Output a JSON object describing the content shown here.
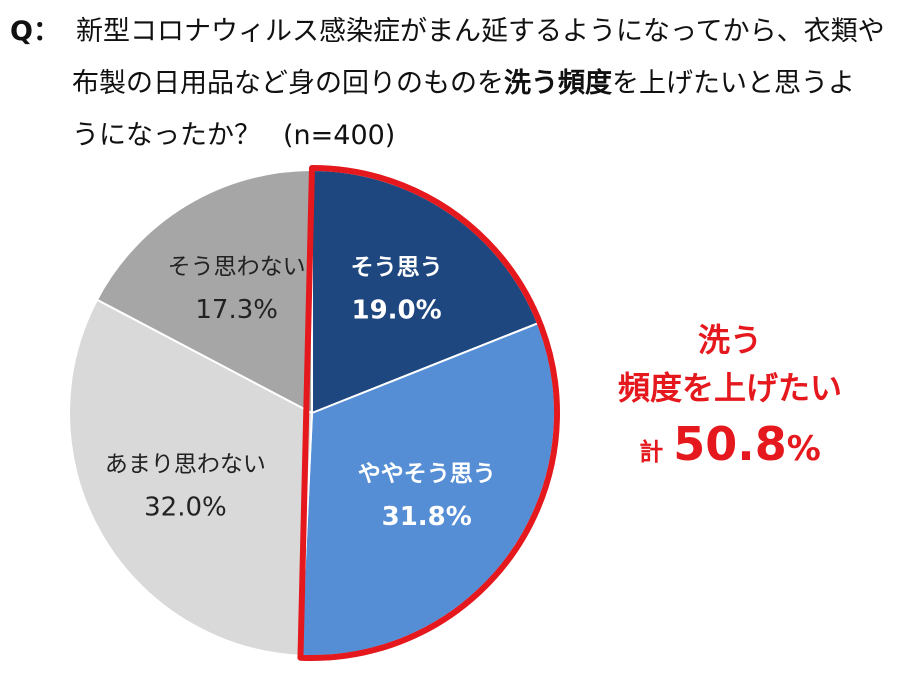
{
  "question": {
    "marker": "Q：",
    "line1": "新型コロナウィルス感染症がまん延するようになってから、衣類や",
    "line2_before": "布製の日用品など身の回りのものを",
    "line2_strong": "洗う頻度",
    "line2_after": "を上げたいと思うよ",
    "line3": "うになったか？",
    "sample": "(n=400)"
  },
  "callout": {
    "line1": "洗う",
    "line2": "頻度を上げたい",
    "total_label": "計",
    "total_value": "50.8",
    "total_unit": "%"
  },
  "chart_data": {
    "type": "pie",
    "title": "",
    "start": "12 o'clock",
    "direction": "clockwise",
    "slices": [
      {
        "label": "そう思う",
        "value": 19.0,
        "value_label": "19.0%",
        "color": "#1f477f",
        "text_color": "#ffffff",
        "bold": true
      },
      {
        "label": "ややそう思う",
        "value": 31.8,
        "value_label": "31.8%",
        "color": "#558ed5",
        "text_color": "#ffffff",
        "bold": true
      },
      {
        "label": "あまり思わない",
        "value": 32.0,
        "value_label": "32.0%",
        "color": "#d9d9d9",
        "text_color": "#222222",
        "bold": false
      },
      {
        "label": "そう思わない",
        "value": 17.3,
        "value_label": "17.3%",
        "color": "#a6a6a6",
        "text_color": "#222222",
        "bold": false
      }
    ],
    "highlight": {
      "slices": [
        0,
        1
      ],
      "outline_color": "#e4181d"
    }
  }
}
